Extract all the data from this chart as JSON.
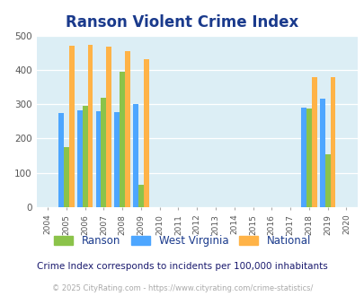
{
  "title": "Ranson Violent Crime Index",
  "subtitle": "Crime Index corresponds to incidents per 100,000 inhabitants",
  "footer": "© 2025 CityRating.com - https://www.cityrating.com/crime-statistics/",
  "years": [
    2004,
    2005,
    2006,
    2007,
    2008,
    2009,
    2010,
    2011,
    2012,
    2013,
    2014,
    2015,
    2016,
    2017,
    2018,
    2019,
    2020
  ],
  "data_years": [
    2005,
    2006,
    2007,
    2008,
    2009,
    2018,
    2019
  ],
  "ranson": [
    175,
    295,
    318,
    395,
    65,
    287,
    153
  ],
  "west_virginia": [
    275,
    282,
    280,
    277,
    300,
    291,
    315
  ],
  "national": [
    470,
    473,
    467,
    455,
    432,
    380,
    380
  ],
  "ranson_color": "#8bc34a",
  "wv_color": "#4da6ff",
  "national_color": "#ffb347",
  "bg_color": "#dceef5",
  "ylim": [
    0,
    500
  ],
  "yticks": [
    0,
    100,
    200,
    300,
    400,
    500
  ],
  "bar_width": 0.28,
  "title_color": "#1a3a8c",
  "subtitle_color": "#1a1a6e",
  "footer_color": "#aaaaaa",
  "legend_labels": [
    "Ranson",
    "West Virginia",
    "National"
  ]
}
